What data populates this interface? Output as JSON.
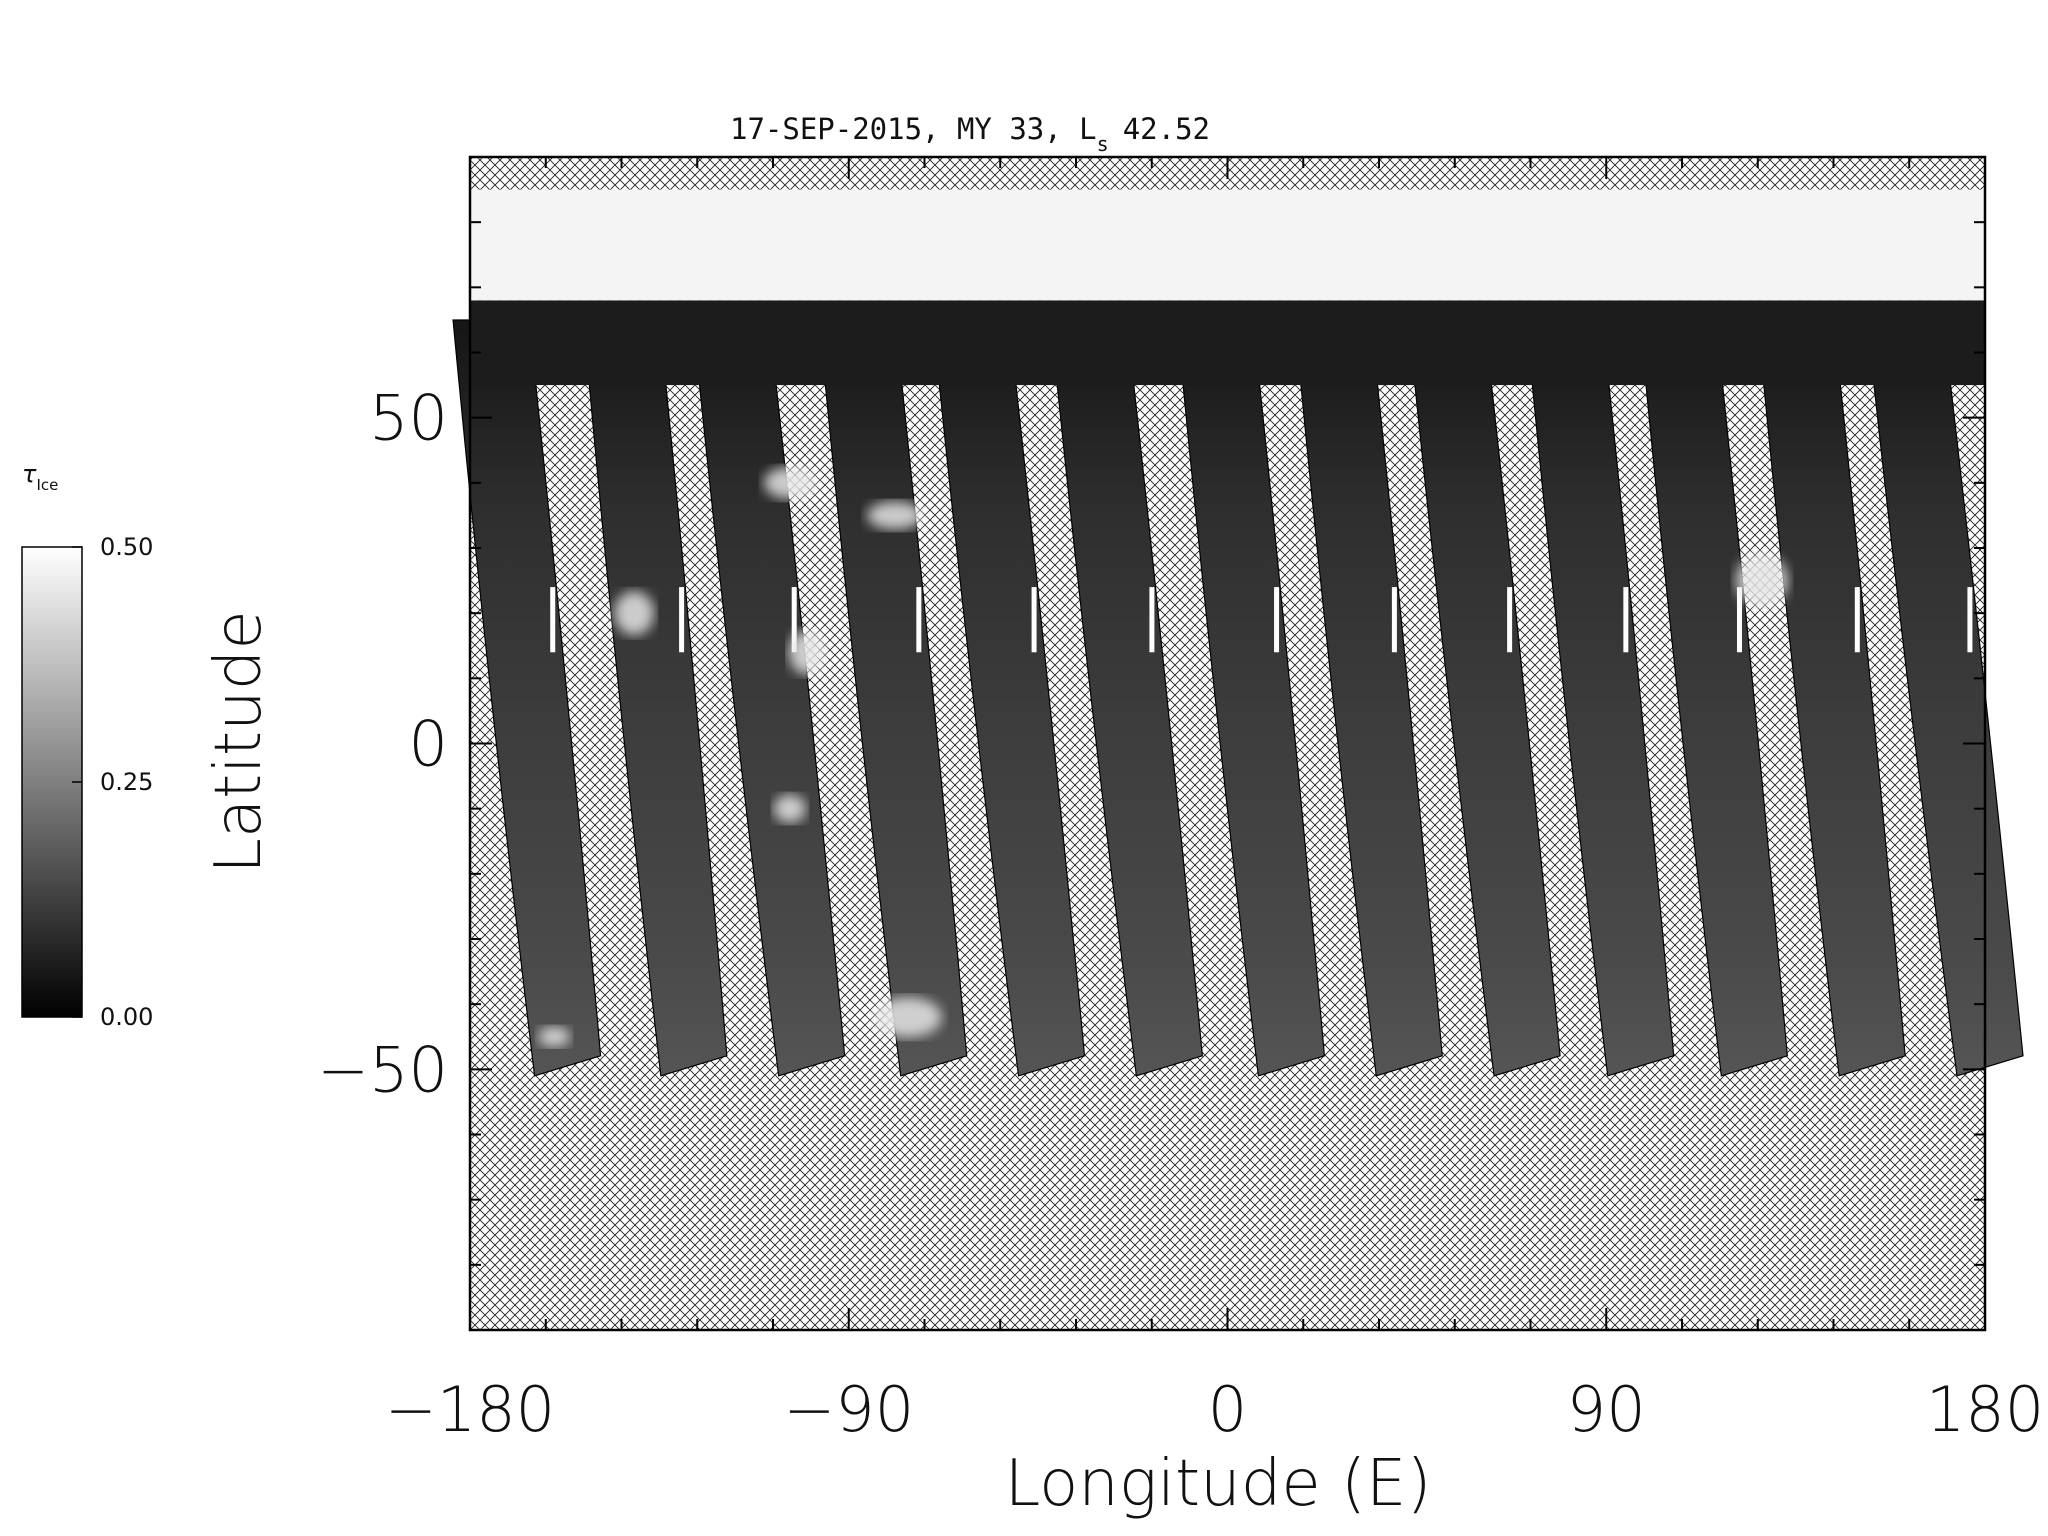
{
  "chart_data": {
    "type": "heatmap",
    "title": "17-SEP-2015, MY 33,  L",
    "title_subscript": "s",
    "title_value": "42.52",
    "xlabel": "Longitude (E)",
    "ylabel": "Latitude",
    "xlim": [
      -180,
      180
    ],
    "ylim": [
      -90,
      90
    ],
    "x_ticks": [
      -180,
      -90,
      0,
      90,
      180
    ],
    "x_tick_labels": [
      "−180",
      "−90",
      "0",
      "90",
      "180"
    ],
    "y_ticks": [
      -50,
      0,
      50
    ],
    "y_tick_labels": [
      "−50",
      "0",
      "50"
    ],
    "colorbar": {
      "label": "τ",
      "label_subscript": "Ice",
      "range": [
        0.0,
        0.5
      ],
      "ticks": [
        "0.00",
        "0.25",
        "0.50"
      ],
      "colormap": "grayscale"
    },
    "polar_cap": {
      "lat_min": 68,
      "lat_max": 85
    },
    "no_data_fill": "crosshatch",
    "swaths": [
      {
        "lon_north": -175,
        "lon_south": -158,
        "lat_top": 65,
        "lat_bottom": -51
      },
      {
        "lon_north": -144,
        "lon_south": -128,
        "lat_top": 65,
        "lat_bottom": -51
      },
      {
        "lon_north": -118,
        "lon_south": -100,
        "lat_top": 65,
        "lat_bottom": -51
      },
      {
        "lon_north": -88,
        "lon_south": -71,
        "lat_top": 65,
        "lat_bottom": -51
      },
      {
        "lon_north": -61,
        "lon_south": -43,
        "lat_top": 65,
        "lat_bottom": -51
      },
      {
        "lon_north": -33,
        "lon_south": -15,
        "lat_top": 65,
        "lat_bottom": -51
      },
      {
        "lon_north": -3,
        "lon_south": 14,
        "lat_top": 65,
        "lat_bottom": -51
      },
      {
        "lon_north": 25,
        "lon_south": 42,
        "lat_top": 65,
        "lat_bottom": -51
      },
      {
        "lon_north": 52,
        "lon_south": 70,
        "lat_top": 65,
        "lat_bottom": -51
      },
      {
        "lon_north": 80,
        "lon_south": 97,
        "lat_top": 65,
        "lat_bottom": -51
      },
      {
        "lon_north": 107,
        "lon_south": 124,
        "lat_top": 65,
        "lat_bottom": -51
      },
      {
        "lon_north": 135,
        "lon_south": 152,
        "lat_top": 65,
        "lat_bottom": -51
      },
      {
        "lon_north": 161,
        "lon_south": 180,
        "lat_top": 65,
        "lat_bottom": -51
      }
    ]
  }
}
